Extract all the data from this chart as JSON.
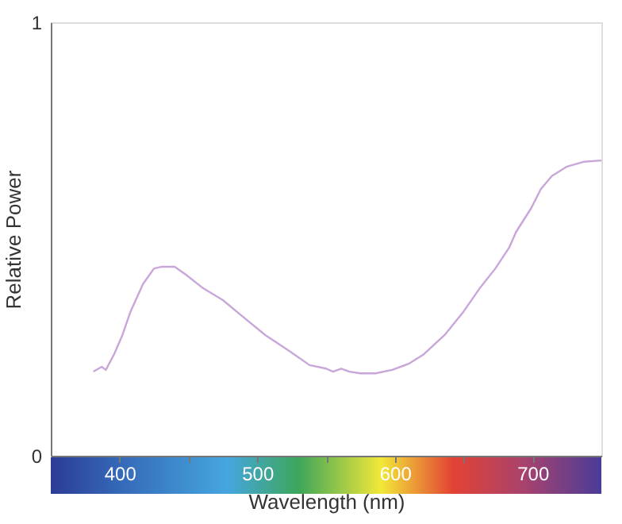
{
  "chart_data": {
    "type": "line",
    "xlabel": "Wavelength (nm)",
    "ylabel": "Relative Power",
    "x": [
      381,
      387,
      390,
      396,
      402,
      408,
      417,
      425,
      431,
      440,
      448,
      460,
      475,
      489,
      506,
      523,
      538,
      550,
      555,
      561,
      567,
      575,
      586,
      598,
      610,
      621,
      636,
      650,
      662,
      673,
      683,
      688,
      699,
      706,
      714,
      725,
      737,
      750
    ],
    "series": [
      {
        "color": "#c9a6d9",
        "values": [
          0.194,
          0.205,
          0.198,
          0.234,
          0.278,
          0.333,
          0.396,
          0.432,
          0.436,
          0.436,
          0.418,
          0.388,
          0.359,
          0.322,
          0.278,
          0.242,
          0.209,
          0.201,
          0.194,
          0.201,
          0.194,
          0.19,
          0.19,
          0.198,
          0.212,
          0.234,
          0.278,
          0.333,
          0.388,
          0.432,
          0.48,
          0.516,
          0.571,
          0.615,
          0.645,
          0.667,
          0.678,
          0.681
        ]
      }
    ],
    "xlim": [
      350,
      750
    ],
    "xticks": [
      400,
      {
        "value": 450,
        "label": null
      },
      500,
      {
        "value": 550,
        "label": null
      },
      600,
      {
        "value": 650,
        "label": null
      },
      700
    ],
    "ylim": [
      0,
      1
    ],
    "yticks": [
      0,
      1
    ],
    "grid": false,
    "marker": "none",
    "line_style": "solid"
  }
}
